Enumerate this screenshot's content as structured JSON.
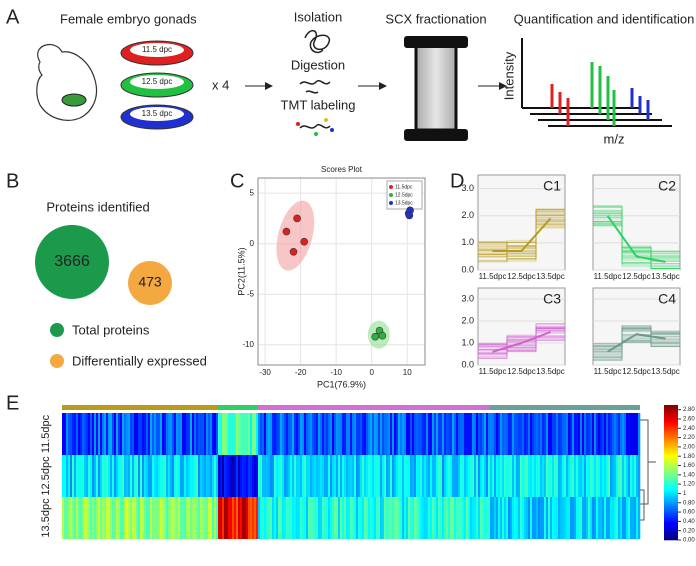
{
  "panel_a": {
    "label": "A",
    "source": "Female embryo gonads",
    "dishes": [
      "11.5 dpc",
      "12.5 dpc",
      "13.5 dpc"
    ],
    "multiplier": "x 4",
    "steps": [
      "Isolation",
      "Digestion",
      "TMT labeling"
    ],
    "fractionation": "SCX fractionation",
    "quantification": "Quantification and identification",
    "y_label": "Intensity",
    "x_label": "m/z"
  },
  "panel_b": {
    "label": "B",
    "title": "Proteins identified",
    "total": 3666,
    "differential": 473,
    "legend": [
      "Total proteins",
      "Differentially expressed"
    ]
  },
  "panel_c": {
    "label": "C",
    "chart_data": {
      "type": "scatter",
      "title": "Scores Plot",
      "x_label": "PC1(76.9%)",
      "y_label": "PC2(11.5%)",
      "xlim": [
        -32,
        15
      ],
      "ylim": [
        -12,
        6.5
      ],
      "xticks": [
        -30,
        -20,
        -10,
        0,
        10
      ],
      "yticks": [
        -10,
        -5,
        0,
        5
      ],
      "grid": true,
      "series": [
        {
          "name": "11.5dpc",
          "color": "#e02020",
          "x": [
            -21,
            -24,
            -19,
            -22
          ],
          "values": [
            2.5,
            1.2,
            0.2,
            -0.8
          ]
        },
        {
          "name": "12.5dpc",
          "color": "#30b040",
          "x": [
            1,
            2.2,
            3
          ],
          "values": [
            -9.2,
            -8.6,
            -9.1
          ]
        },
        {
          "name": "13.5dpc",
          "color": "#2030d0",
          "x": [
            10.4,
            10.8,
            10.6
          ],
          "values": [
            3.0,
            3.3,
            2.8
          ]
        }
      ]
    }
  },
  "panel_d": {
    "label": "D",
    "chart_data": {
      "type": "line",
      "categories": [
        "11.5dpc",
        "12.5dpc",
        "13.5dpc"
      ],
      "ylim": [
        0,
        3.5
      ],
      "yticks": [
        {
          "value": 0,
          "label": "0.0"
        },
        {
          "value": 1,
          "label": "1.0"
        },
        {
          "value": 2,
          "label": "2.0"
        },
        {
          "value": 3,
          "label": "3.0"
        }
      ],
      "series": [
        {
          "name": "C1",
          "color": "#b89a20",
          "values": [
            0.7,
            0.7,
            1.9
          ]
        },
        {
          "name": "C2",
          "color": "#30d060",
          "values": [
            2.0,
            0.5,
            0.3
          ]
        },
        {
          "name": "C3",
          "color": "#d060d0",
          "values": [
            0.6,
            1.0,
            1.5
          ]
        },
        {
          "name": "C4",
          "color": "#6a9a88",
          "values": [
            0.6,
            1.4,
            1.2
          ]
        }
      ]
    }
  },
  "panel_e": {
    "label": "E",
    "rows": [
      "11.5dpc",
      "12.5dpc",
      "13.5dpc"
    ],
    "colorbar_lim": [
      0,
      2.9
    ],
    "colorbar_ticks": [
      {
        "value": 2.8,
        "label": "2.80"
      },
      {
        "value": 2.6,
        "label": "2.60"
      },
      {
        "value": 2.4,
        "label": "2.40"
      },
      {
        "value": 2.2,
        "label": "2.20"
      },
      {
        "value": 2,
        "label": "2.00"
      },
      {
        "value": 1.8,
        "label": "1.80"
      },
      {
        "value": 1.6,
        "label": "1.60"
      },
      {
        "value": 1.4,
        "label": "1.40"
      },
      {
        "value": 1.2,
        "label": "1.20"
      },
      1,
      {
        "value": 0.8,
        "label": "0.80"
      },
      {
        "value": 0.6,
        "label": "0.60"
      },
      {
        "value": 0.4,
        "label": "0.40"
      },
      {
        "value": 0.2,
        "label": "0.20"
      },
      {
        "value": 0,
        "label": "0.00"
      }
    ]
  }
}
